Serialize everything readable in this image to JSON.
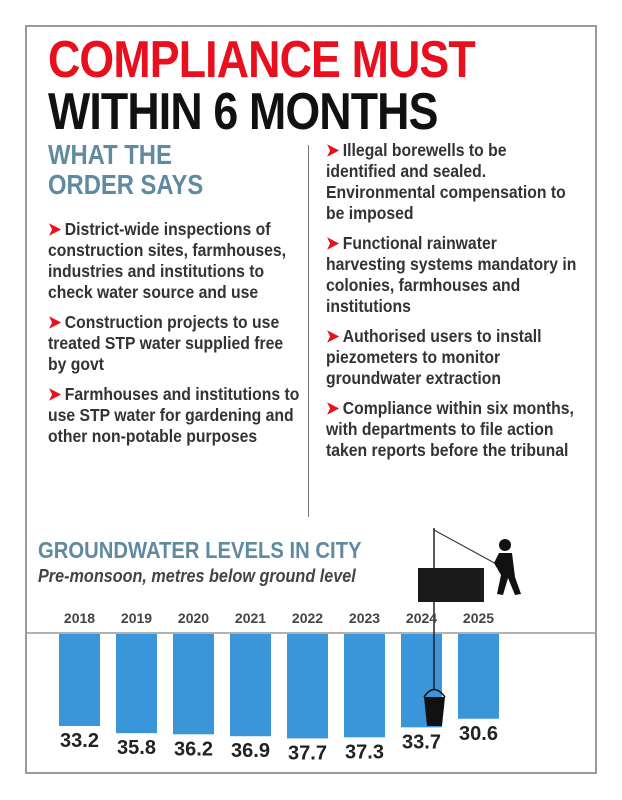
{
  "header": {
    "line1": "COMPLIANCE MUST",
    "line2": "WITHIN 6 MONTHS",
    "subhead_line1": "WHAT THE",
    "subhead_line2": "ORDER SAYS"
  },
  "left_points": [
    "District-wide inspections of construction sites, farmhouses, industries and institutions to check water source and use",
    "Construction projects to use treated STP water supplied free by govt",
    "Farmhouses and institutions to use STP water for gardening and other non-potable purposes"
  ],
  "right_points": [
    "Illegal borewells to be identified and sealed. Environmental compensation to be imposed",
    "Functional rainwater harvesting systems mandatory in colonies, farmhouses and institutions",
    "Authorised users to install piezometers to monitor groundwater extraction",
    "Compliance within six months, with departments to file action taken reports before the tribunal"
  ],
  "colors": {
    "accent_red": "#e8101e",
    "subhead_blue": "#5f8aa0",
    "bar": "#3a95d9"
  },
  "chart_data": {
    "type": "bar",
    "title": "GROUNDWATER LEVELS IN CITY",
    "subtitle": "Pre-monsoon, metres below ground level",
    "categories": [
      "2018",
      "2019",
      "2020",
      "2021",
      "2022",
      "2023",
      "2024",
      "2025"
    ],
    "values": [
      33.2,
      35.8,
      36.2,
      36.9,
      37.7,
      37.3,
      33.7,
      30.6
    ],
    "labels": [
      "33.2",
      "35.8",
      "36.2",
      "36.9",
      "37.7",
      "37.3",
      "33.7",
      "30.6"
    ],
    "orientation": "downward from ground line",
    "grid": false
  }
}
